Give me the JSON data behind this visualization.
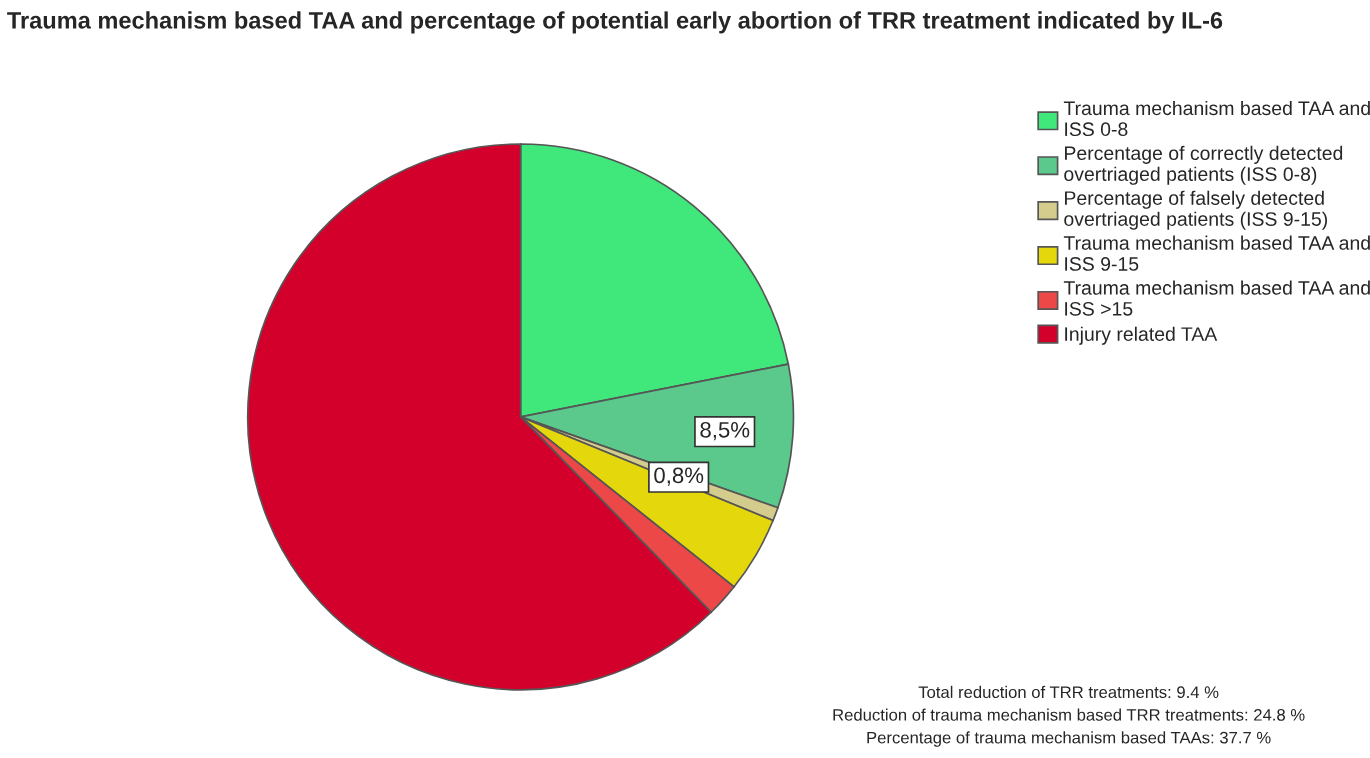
{
  "chart_data": {
    "type": "pie",
    "title": "Trauma mechanism based TAA and percentage of potential early abortion of TRR treatment indicated by IL-6",
    "categories": [
      "Trauma mechanism based TAA and ISS 0-8",
      "Percentage of correctly detected overtriaged patients (ISS 0-8)",
      "Percentage of falsely detected overtriaged patients (ISS 9-15)",
      "Trauma mechanism based TAA and ISS 9-15",
      "Trauma mechanism based TAA and ISS >15",
      "Injury related TAA"
    ],
    "values": [
      21.9,
      8.5,
      0.8,
      4.5,
      2.0,
      62.3
    ],
    "colors": [
      "#40e87c",
      "#5cc98c",
      "#d4cc8c",
      "#e4d80c",
      "#ec4848",
      "#d4002c"
    ],
    "value_labels": [
      null,
      "8,5%",
      "0,8%",
      null,
      null,
      null
    ],
    "legend": "right",
    "annotations": [
      "Total reduction of TRR treatments: 9.4 %",
      "Reduction of trauma mechanism based TRR treatments: 24.8 %",
      "Percentage of trauma mechanism based TAAs: 37.7 %"
    ]
  }
}
